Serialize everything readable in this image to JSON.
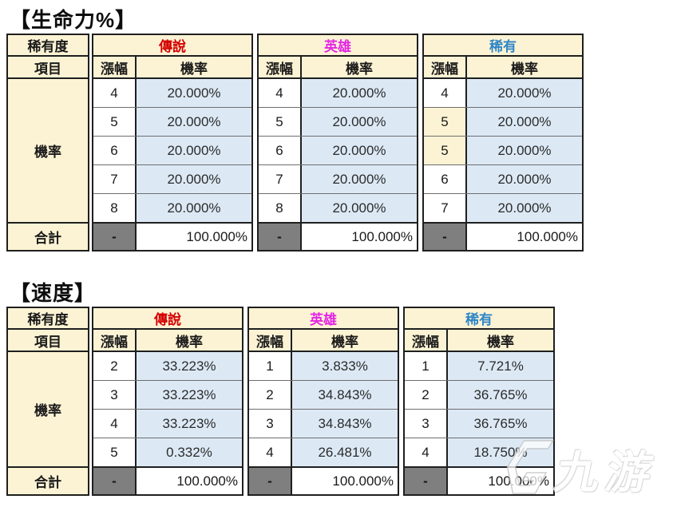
{
  "watermark": {
    "text": "九游"
  },
  "colors": {
    "header_bg": "#fcf3d4",
    "prob_cell_bg": "#dce9f5",
    "dash_cell_bg": "#7f7f7f",
    "highlight_bg": "#fcf3d4",
    "legend_color": "#d40000",
    "hero_color": "#e426e4",
    "rare_color": "#2e86c8"
  },
  "tables": [
    {
      "title": "【生命力%】",
      "rarity_header": "稀有度",
      "item_header": "項目",
      "row_label": "機率",
      "total_label": "合計",
      "rise_header": "漲幅",
      "prob_header": "機率",
      "dash": "-",
      "groups": [
        {
          "name": "傳說",
          "color": "#d40000",
          "rows": [
            {
              "rise": "4",
              "prob": "20.000%"
            },
            {
              "rise": "5",
              "prob": "20.000%"
            },
            {
              "rise": "6",
              "prob": "20.000%"
            },
            {
              "rise": "7",
              "prob": "20.000%"
            },
            {
              "rise": "8",
              "prob": "20.000%"
            }
          ],
          "total": "100.000%"
        },
        {
          "name": "英雄",
          "color": "#e426e4",
          "rows": [
            {
              "rise": "4",
              "prob": "20.000%"
            },
            {
              "rise": "5",
              "prob": "20.000%"
            },
            {
              "rise": "6",
              "prob": "20.000%"
            },
            {
              "rise": "7",
              "prob": "20.000%"
            },
            {
              "rise": "8",
              "prob": "20.000%"
            }
          ],
          "total": "100.000%"
        },
        {
          "name": "稀有",
          "color": "#2e86c8",
          "rows": [
            {
              "rise": "4",
              "prob": "20.000%"
            },
            {
              "rise": "5",
              "prob": "20.000%",
              "highlight": true
            },
            {
              "rise": "5",
              "prob": "20.000%",
              "highlight": true
            },
            {
              "rise": "6",
              "prob": "20.000%"
            },
            {
              "rise": "7",
              "prob": "20.000%"
            }
          ],
          "total": "100.000%"
        }
      ]
    },
    {
      "title": "【速度】",
      "rarity_header": "稀有度",
      "item_header": "項目",
      "row_label": "機率",
      "total_label": "合計",
      "rise_header": "漲幅",
      "prob_header": "機率",
      "dash": "-",
      "groups": [
        {
          "name": "傳說",
          "color": "#d40000",
          "rows": [
            {
              "rise": "2",
              "prob": "33.223%"
            },
            {
              "rise": "3",
              "prob": "33.223%"
            },
            {
              "rise": "4",
              "prob": "33.223%"
            },
            {
              "rise": "5",
              "prob": "0.332%"
            }
          ],
          "total": "100.000%"
        },
        {
          "name": "英雄",
          "color": "#e426e4",
          "rows": [
            {
              "rise": "1",
              "prob": "3.833%"
            },
            {
              "rise": "2",
              "prob": "34.843%"
            },
            {
              "rise": "3",
              "prob": "34.843%"
            },
            {
              "rise": "4",
              "prob": "26.481%"
            }
          ],
          "total": "100.000%"
        },
        {
          "name": "稀有",
          "color": "#2e86c8",
          "rows": [
            {
              "rise": "1",
              "prob": "7.721%"
            },
            {
              "rise": "2",
              "prob": "36.765%"
            },
            {
              "rise": "3",
              "prob": "36.765%"
            },
            {
              "rise": "4",
              "prob": "18.750%"
            }
          ],
          "total": "100.000%"
        }
      ]
    }
  ]
}
